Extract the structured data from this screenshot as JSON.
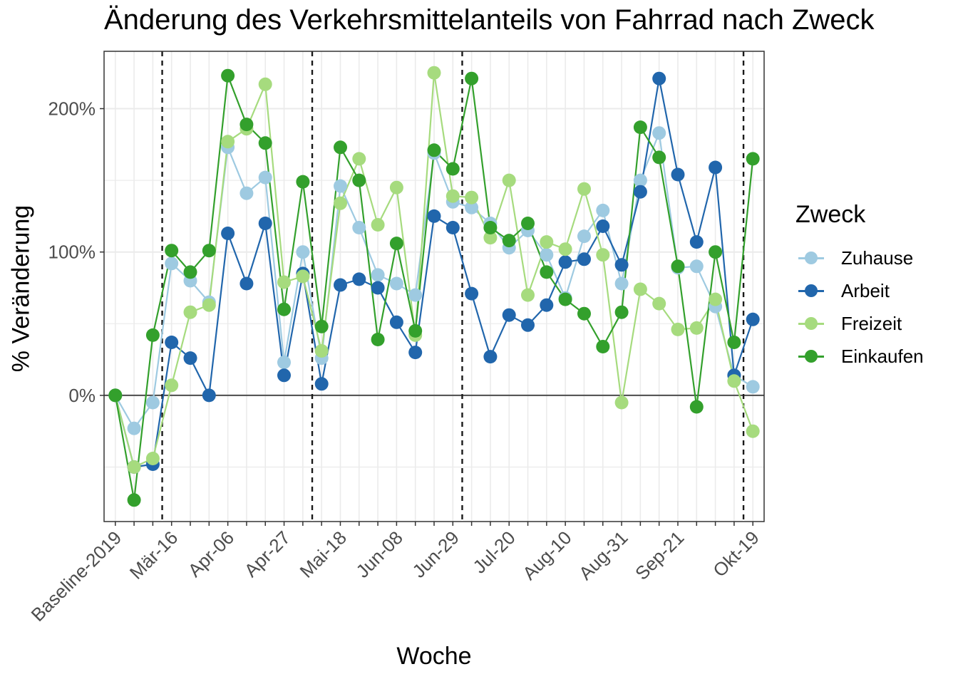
{
  "chart_data": {
    "type": "line",
    "title": "Änderung des Verkehrsmittelanteils von Fahrrad nach Zweck",
    "xlabel": "Woche",
    "ylabel": "% Veränderung",
    "x_tick_labels": [
      "Baseline-2019",
      "Mär-16",
      "Apr-06",
      "Apr-27",
      "Mai-18",
      "Jun-08",
      "Jun-29",
      "Jul-20",
      "Aug-10",
      "Aug-31",
      "Sep-21",
      "Okt-19"
    ],
    "x_tick_positions": [
      0,
      3,
      6,
      9,
      12,
      15,
      18,
      21,
      24,
      27,
      30,
      34
    ],
    "y_ticks": [
      0,
      100,
      200
    ],
    "y_tick_labels": [
      "0%",
      "100%",
      "200%"
    ],
    "ylim": [
      -88,
      240
    ],
    "xlim": [
      -0.6,
      34.6
    ],
    "reference_hline": 0,
    "vlines_dashed": [
      2.5,
      10.5,
      18.5,
      33.5
    ],
    "grid": true,
    "legend_title": "Zweck",
    "legend_position": "right",
    "series": [
      {
        "name": "Zuhause",
        "color": "#9ECAE1",
        "values": [
          0,
          -23,
          -5,
          92,
          80,
          65,
          173,
          141,
          152,
          23,
          100,
          26,
          146,
          117,
          84,
          78,
          70,
          169,
          135,
          131,
          120,
          103,
          115,
          98,
          68,
          111,
          129,
          78,
          150,
          183,
          89,
          90,
          62,
          14,
          6
        ]
      },
      {
        "name": "Arbeit",
        "color": "#2166AC",
        "values": [
          0,
          -50,
          -48,
          37,
          26,
          0,
          113,
          78,
          120,
          14,
          85,
          8,
          77,
          81,
          75,
          51,
          30,
          125,
          117,
          71,
          27,
          56,
          49,
          63,
          93,
          95,
          118,
          91,
          142,
          221,
          154,
          107,
          159,
          14,
          53
        ]
      },
      {
        "name": "Freizeit",
        "color": "#A6DB7E",
        "values": [
          0,
          -50,
          -44,
          7,
          58,
          63,
          177,
          186,
          217,
          79,
          83,
          31,
          134,
          165,
          119,
          145,
          42,
          225,
          139,
          138,
          110,
          150,
          70,
          107,
          102,
          144,
          98,
          -5,
          74,
          64,
          46,
          47,
          67,
          10,
          -25
        ]
      },
      {
        "name": "Einkaufen",
        "color": "#33A02C",
        "values": [
          0,
          -73,
          42,
          101,
          86,
          101,
          223,
          189,
          176,
          60,
          149,
          48,
          173,
          150,
          39,
          106,
          45,
          171,
          158,
          221,
          117,
          108,
          120,
          86,
          67,
          57,
          34,
          58,
          187,
          166,
          90,
          -8,
          100,
          37,
          165
        ]
      }
    ]
  }
}
